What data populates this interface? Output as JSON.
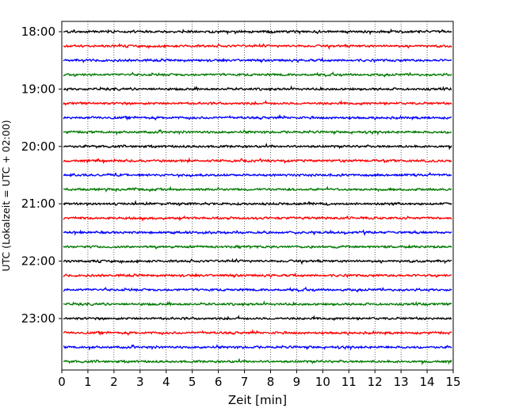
{
  "chart_data": {
    "type": "line",
    "title": "",
    "xlabel": "Zeit  [min]",
    "ylabel": "UTC (Lokalzeit = UTC + 02:00)",
    "xlim": [
      0,
      15
    ],
    "x_ticks": [
      0,
      1,
      2,
      3,
      4,
      5,
      6,
      7,
      8,
      9,
      10,
      11,
      12,
      13,
      14,
      15
    ],
    "y_ticks": [
      "18:00",
      "19:00",
      "20:00",
      "21:00",
      "22:00",
      "23:00"
    ],
    "trace_start_times": [
      "18:00",
      "18:15",
      "18:30",
      "18:45",
      "19:00",
      "19:15",
      "19:30",
      "19:45",
      "20:00",
      "20:15",
      "20:30",
      "20:45",
      "21:00",
      "21:15",
      "21:30",
      "21:45",
      "22:00",
      "22:15",
      "22:30",
      "22:45",
      "23:00",
      "23:15",
      "23:30",
      "23:45"
    ],
    "trace_color_cycle": [
      "#000000",
      "#ff0000",
      "#0000ff",
      "#007a00"
    ],
    "trace_duration_min": 15,
    "grid": "vertical dotted at each minute",
    "legend": "none"
  }
}
